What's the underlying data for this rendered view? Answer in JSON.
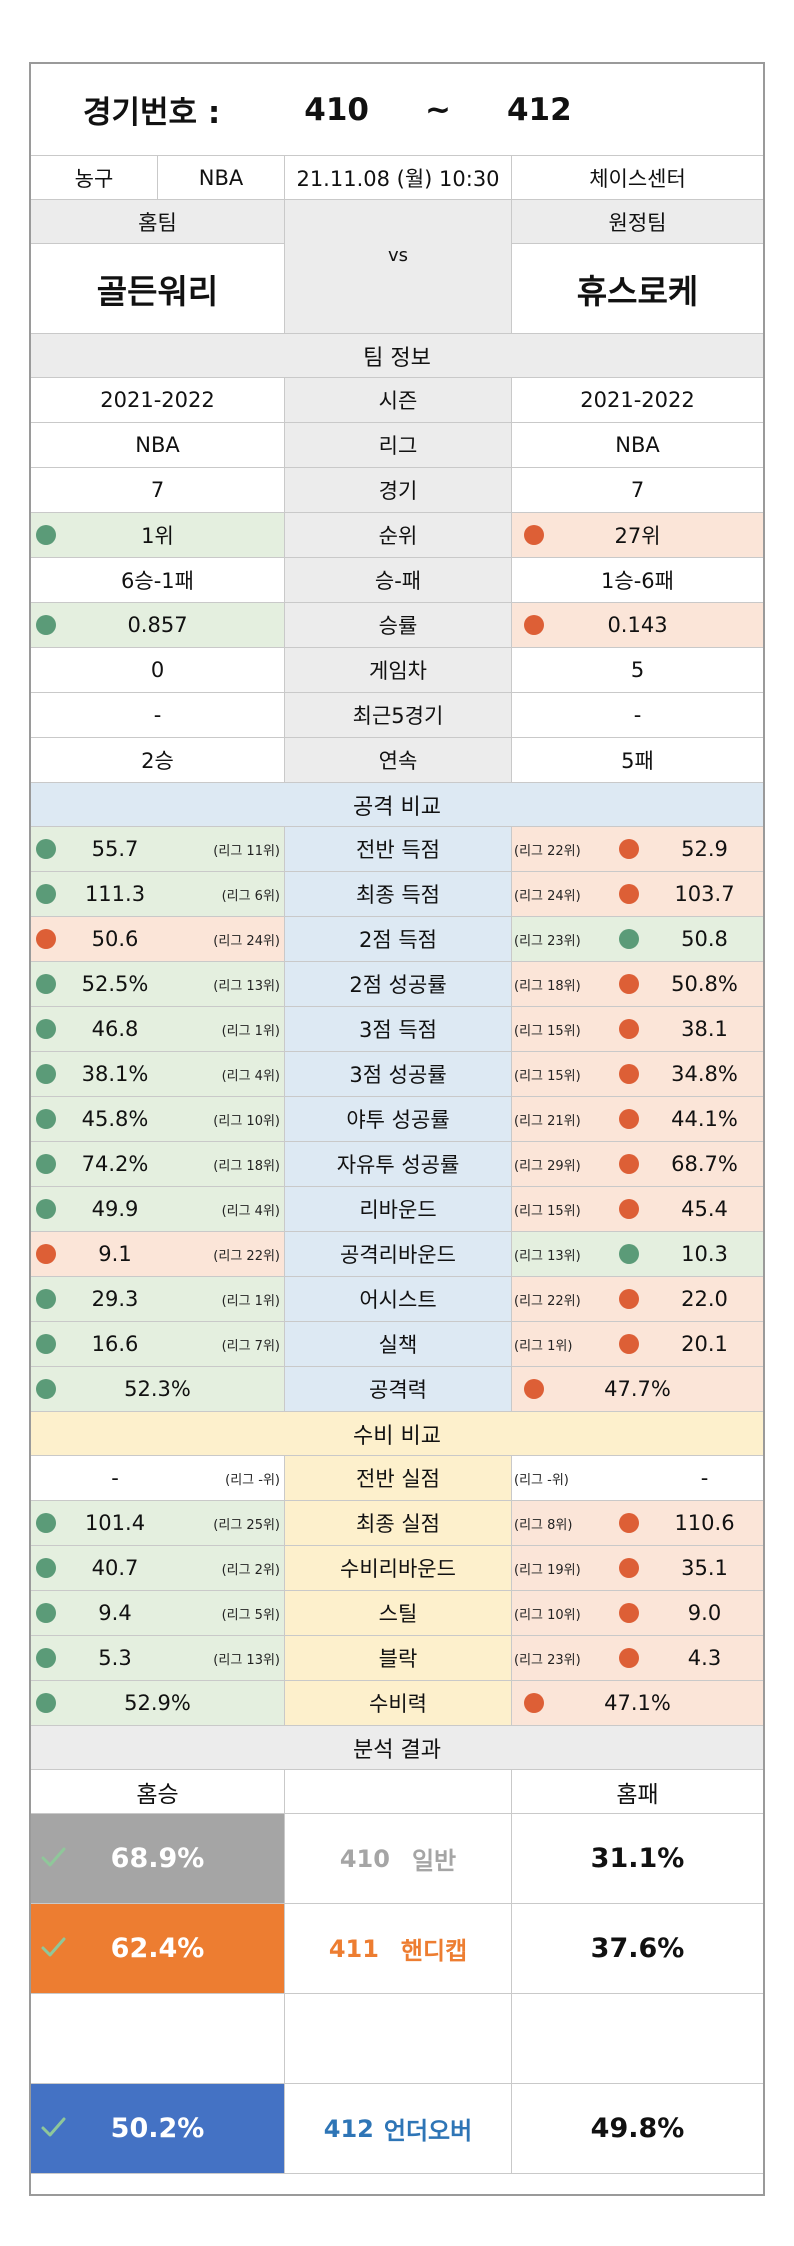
{
  "header": {
    "title_label": "경기번호 :",
    "game_start": "410",
    "tilde": "~",
    "game_end": "412"
  },
  "info": {
    "sport": "농구",
    "league": "NBA",
    "datetime": "21.11.08 (월) 10:30",
    "venue": "체이스센터"
  },
  "teams": {
    "home_label": "홈팀",
    "away_label": "원정팀",
    "home_name": "골든워리",
    "away_name": "휴스로케",
    "vs": "vs"
  },
  "team_info": {
    "heading": "팀 정보",
    "rows": [
      {
        "home": "2021-2022",
        "label": "시즌",
        "away": "2021-2022"
      },
      {
        "home": "NBA",
        "label": "리그",
        "away": "NBA"
      },
      {
        "home": "7",
        "label": "경기",
        "away": "7"
      },
      {
        "home": "1위",
        "label": "순위",
        "away": "27위"
      },
      {
        "home": "6승-1패",
        "label": "승-패",
        "away": "1승-6패"
      },
      {
        "home": "0.857",
        "label": "승률",
        "away": "0.143"
      },
      {
        "home": "0",
        "label": "게임차",
        "away": "5"
      },
      {
        "home": "-",
        "label": "최근5경기",
        "away": "-"
      },
      {
        "home": "2승",
        "label": "연속",
        "away": "5패"
      }
    ]
  },
  "offense": {
    "heading": "공격 비교",
    "rows": [
      {
        "home": "55.7",
        "home_rank": "(리그 11위)",
        "label": "전반 득점",
        "away_rank": "(리그 22위)",
        "away": "52.9"
      },
      {
        "home": "111.3",
        "home_rank": "(리그 6위)",
        "label": "최종 득점",
        "away_rank": "(리그 24위)",
        "away": "103.7"
      },
      {
        "home": "50.6",
        "home_rank": "(리그 24위)",
        "label": "2점 득점",
        "away_rank": "(리그 23위)",
        "away": "50.8"
      },
      {
        "home": "52.5%",
        "home_rank": "(리그 13위)",
        "label": "2점 성공률",
        "away_rank": "(리그 18위)",
        "away": "50.8%"
      },
      {
        "home": "46.8",
        "home_rank": "(리그 1위)",
        "label": "3점 득점",
        "away_rank": "(리그 15위)",
        "away": "38.1"
      },
      {
        "home": "38.1%",
        "home_rank": "(리그 4위)",
        "label": "3점 성공률",
        "away_rank": "(리그 15위)",
        "away": "34.8%"
      },
      {
        "home": "45.8%",
        "home_rank": "(리그 10위)",
        "label": "야투 성공률",
        "away_rank": "(리그 21위)",
        "away": "44.1%"
      },
      {
        "home": "74.2%",
        "home_rank": "(리그 18위)",
        "label": "자유투 성공률",
        "away_rank": "(리그 29위)",
        "away": "68.7%"
      },
      {
        "home": "49.9",
        "home_rank": "(리그 4위)",
        "label": "리바운드",
        "away_rank": "(리그 15위)",
        "away": "45.4"
      },
      {
        "home": "9.1",
        "home_rank": "(리그 22위)",
        "label": "공격리바운드",
        "away_rank": "(리그 13위)",
        "away": "10.3"
      },
      {
        "home": "29.3",
        "home_rank": "(리그 1위)",
        "label": "어시스트",
        "away_rank": "(리그 22위)",
        "away": "22.0"
      },
      {
        "home": "16.6",
        "home_rank": "(리그 7위)",
        "label": "실책",
        "away_rank": "(리그 1위)",
        "away": "20.1"
      }
    ],
    "total": {
      "home": "52.3%",
      "label": "공격력",
      "away": "47.7%"
    }
  },
  "defense": {
    "heading": "수비 비교",
    "rows": [
      {
        "home": "-",
        "home_rank": "(리그 -위)",
        "label": "전반 실점",
        "away_rank": "(리그 -위)",
        "away": "-"
      },
      {
        "home": "101.4",
        "home_rank": "(리그 25위)",
        "label": "최종 실점",
        "away_rank": "(리그 8위)",
        "away": "110.6"
      },
      {
        "home": "40.7",
        "home_rank": "(리그 2위)",
        "label": "수비리바운드",
        "away_rank": "(리그 19위)",
        "away": "35.1"
      },
      {
        "home": "9.4",
        "home_rank": "(리그 5위)",
        "label": "스틸",
        "away_rank": "(리그 10위)",
        "away": "9.0"
      },
      {
        "home": "5.3",
        "home_rank": "(리그 13위)",
        "label": "블락",
        "away_rank": "(리그 23위)",
        "away": "4.3"
      }
    ],
    "total": {
      "home": "52.9%",
      "label": "수비력",
      "away": "47.1%"
    }
  },
  "analysis": {
    "heading": "분석 결과",
    "home_label": "홈승",
    "away_label": "홈패",
    "rows": [
      {
        "home_pct": "68.9%",
        "code": "410",
        "type": "일반",
        "away_pct": "31.1%",
        "color": "#a5a5a5",
        "text_color": "#a5a5a5"
      },
      {
        "home_pct": "62.4%",
        "code": "411",
        "type": "핸디캡",
        "away_pct": "37.6%",
        "color": "#ed7d31",
        "text_color": "#ed7d31"
      },
      {
        "home_pct": "50.2%",
        "code": "412",
        "type": "언더오버",
        "away_pct": "49.8%",
        "color": "#4472c4",
        "text_color": "#2e75b6"
      }
    ]
  },
  "colors": {
    "good": "#5b9b78",
    "bad": "#dd5f36",
    "good_bg": "#e4efdf",
    "bad_bg": "#fbe5d8",
    "offense_bg": "#dde9f3",
    "defense_bg": "#fdf0cc",
    "grey_bg": "#ececec"
  }
}
